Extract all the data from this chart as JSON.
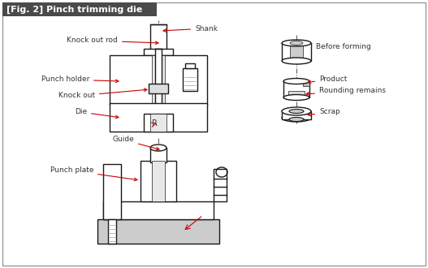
{
  "title": "[Fig. 2] Pinch trimming die",
  "title_bg": "#4a4a4a",
  "title_color": "#ffffff",
  "line_color": "#1a1a1a",
  "annotation_color": "#cc0000",
  "text_color": "#333333",
  "bg_color": "#ffffff",
  "border_color": "#555555",
  "labels": {
    "shank": "Shank",
    "knockout_rod": "Knock out rod",
    "punch_holder": "Punch holder",
    "knockout": "Knock out",
    "die": "Die",
    "r": "R",
    "guide": "Guide",
    "punch_plate": "Punch plate",
    "before_forming": "Before forming",
    "product": "Product",
    "rounding_remains": "Rounding remains",
    "scrap": "Scrap"
  }
}
